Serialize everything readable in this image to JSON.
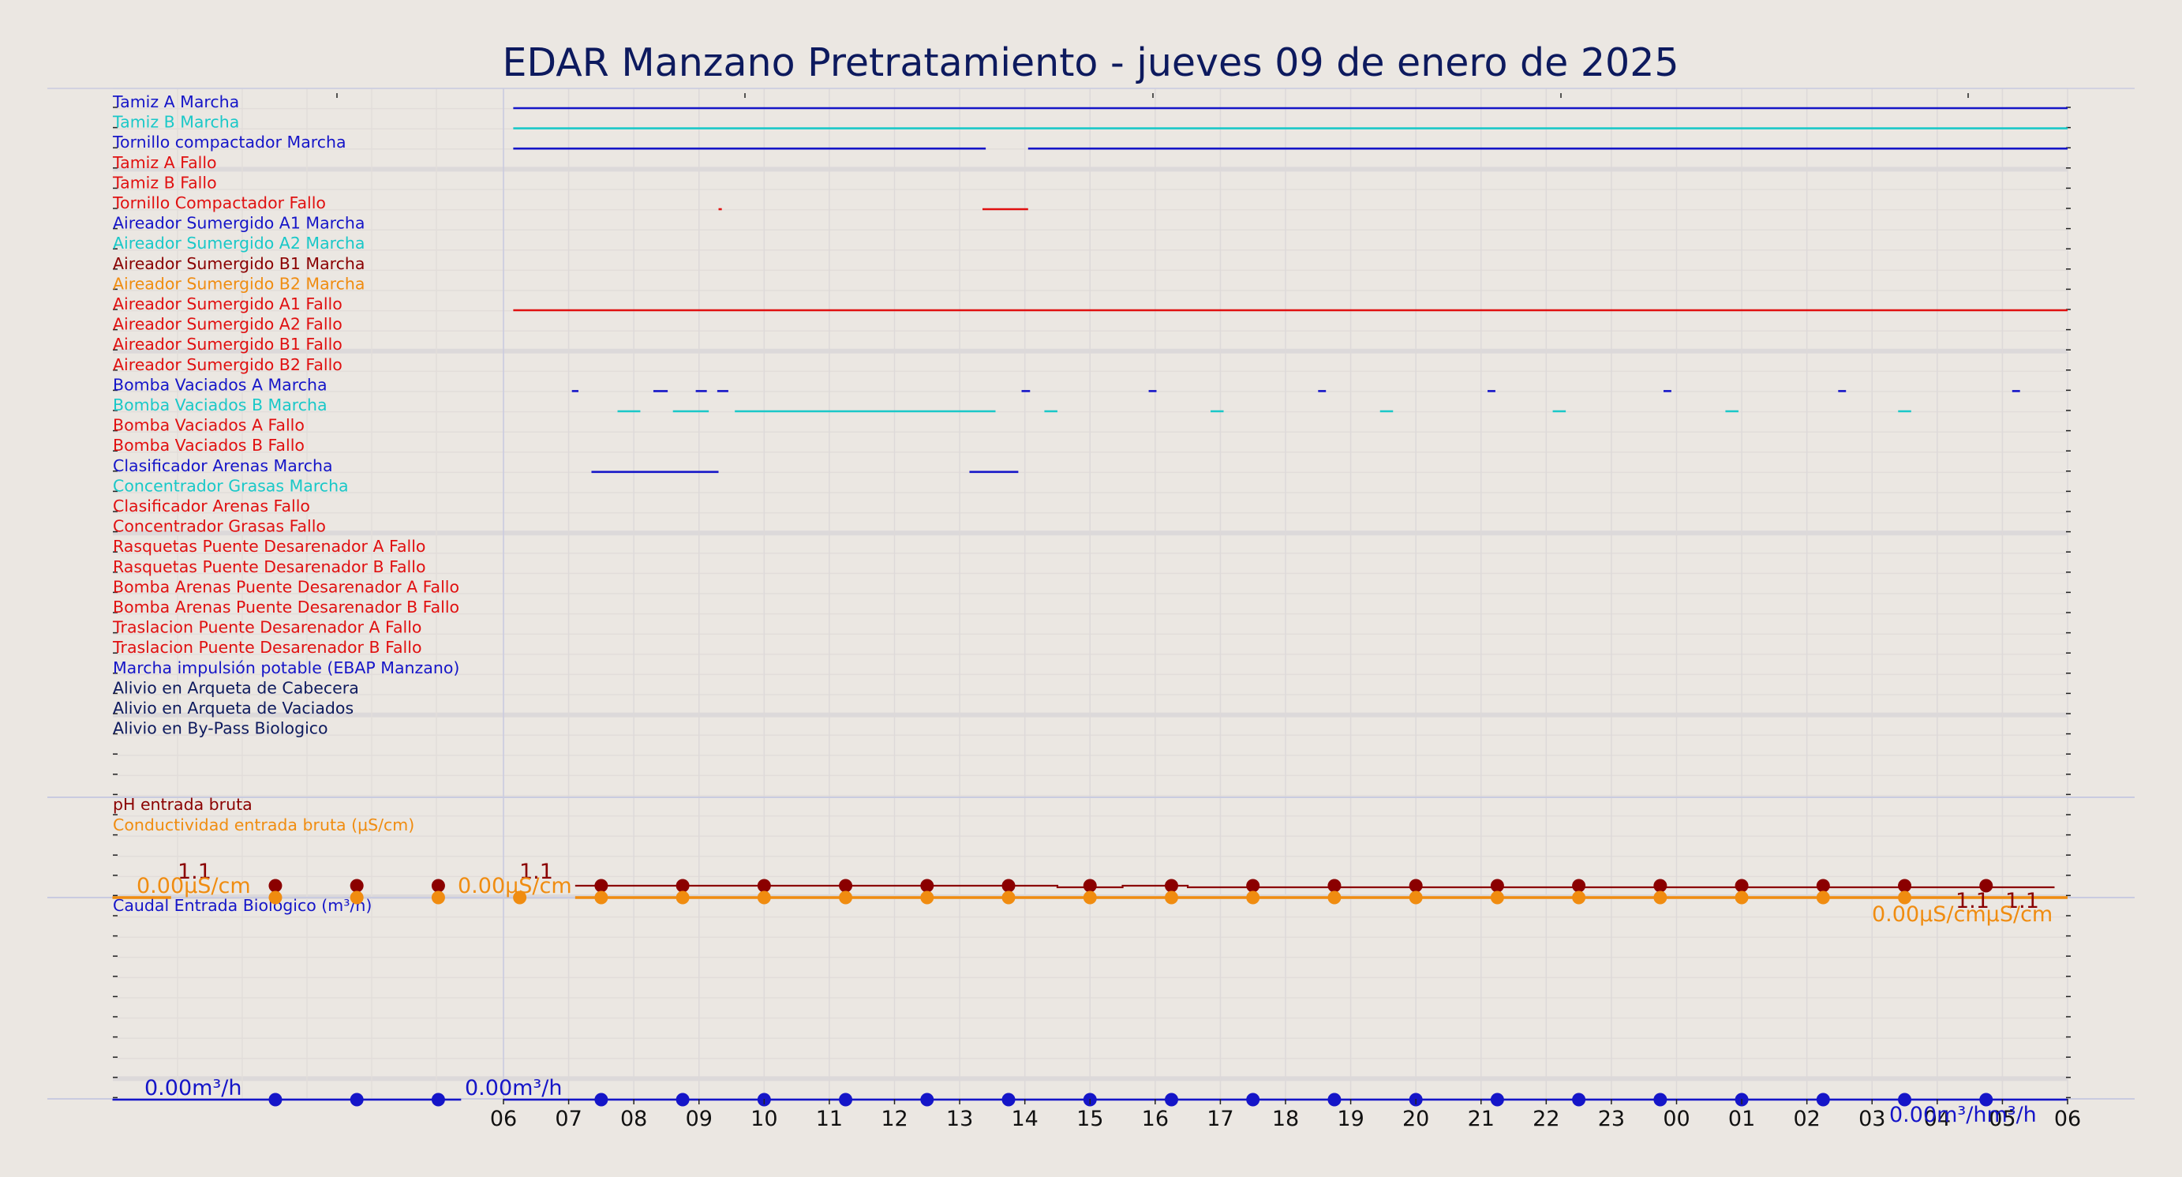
{
  "title": "EDAR Manzano Pretratamiento   -   jueves 09 de enero de 2025",
  "colors": {
    "background": "#ebe7e2",
    "blue": "#1515c8",
    "cyan": "#1ac8c8",
    "red": "#e01010",
    "darkred": "#8b0000",
    "orange": "#f08c10",
    "navy": "#0d1a5e"
  },
  "chart_data": {
    "type": "timeline",
    "x_ticks": [
      "06",
      "07",
      "08",
      "09",
      "10",
      "11",
      "12",
      "13",
      "14",
      "15",
      "16",
      "17",
      "18",
      "19",
      "20",
      "21",
      "22",
      "23",
      "00",
      "01",
      "02",
      "03",
      "04",
      "05",
      "06"
    ],
    "xlim": [
      0,
      24
    ],
    "signals": [
      {
        "name": "Tamiz A Marcha",
        "color": "#1515c8",
        "segments": [
          [
            0.15,
            24
          ]
        ]
      },
      {
        "name": "Tamiz B Marcha",
        "color": "#1ac8c8",
        "segments": [
          [
            0.15,
            24
          ]
        ]
      },
      {
        "name": "Tornillo compactador Marcha",
        "color": "#1515c8",
        "segments": [
          [
            0.15,
            7.4
          ],
          [
            8.05,
            24
          ]
        ]
      },
      {
        "name": "Tamiz A Fallo",
        "color": "#e01010",
        "segments": []
      },
      {
        "name": "Tamiz B Fallo",
        "color": "#e01010",
        "segments": []
      },
      {
        "name": "Tornillo Compactador Fallo",
        "color": "#e01010",
        "segments": [
          [
            3.3,
            3.35
          ],
          [
            7.35,
            8.05
          ]
        ]
      },
      {
        "name": "Aireador Sumergido A1 Marcha",
        "color": "#1515c8",
        "segments": []
      },
      {
        "name": "Aireador Sumergido A2 Marcha",
        "color": "#1ac8c8",
        "segments": []
      },
      {
        "name": "Aireador Sumergido B1 Marcha",
        "color": "#8b0000",
        "segments": []
      },
      {
        "name": "Aireador Sumergido B2 Marcha",
        "color": "#f08c10",
        "segments": []
      },
      {
        "name": "Aireador Sumergido A1 Fallo",
        "color": "#e01010",
        "segments": [
          [
            0.15,
            24
          ]
        ]
      },
      {
        "name": "Aireador Sumergido A2 Fallo",
        "color": "#e01010",
        "segments": []
      },
      {
        "name": "Aireador Sumergido B1 Fallo",
        "color": "#e01010",
        "segments": []
      },
      {
        "name": "Aireador Sumergido B2 Fallo",
        "color": "#e01010",
        "segments": []
      },
      {
        "name": "Bomba Vaciados A Marcha",
        "color": "#1515c8",
        "segments": [
          [
            1.05,
            1.15
          ],
          [
            2.3,
            2.52
          ],
          [
            2.95,
            3.12
          ],
          [
            3.28,
            3.45
          ],
          [
            7.95,
            8.08
          ],
          [
            9.9,
            10.02
          ],
          [
            12.5,
            12.62
          ],
          [
            15.1,
            15.22
          ],
          [
            17.8,
            17.92
          ],
          [
            20.48,
            20.6
          ],
          [
            23.15,
            23.27
          ]
        ]
      },
      {
        "name": "Bomba Vaciados B Marcha",
        "color": "#1ac8c8",
        "segments": [
          [
            1.75,
            2.1
          ],
          [
            2.6,
            3.15
          ],
          [
            3.55,
            7.55
          ],
          [
            8.3,
            8.5
          ],
          [
            10.85,
            11.05
          ],
          [
            13.45,
            13.65
          ],
          [
            16.1,
            16.3
          ],
          [
            18.75,
            18.95
          ],
          [
            21.4,
            21.6
          ]
        ]
      },
      {
        "name": "Bomba Vaciados A Fallo",
        "color": "#e01010",
        "segments": []
      },
      {
        "name": "Bomba Vaciados B Fallo",
        "color": "#e01010",
        "segments": []
      },
      {
        "name": "Clasificador Arenas Marcha",
        "color": "#1515c8",
        "segments": [
          [
            1.35,
            3.3
          ],
          [
            7.15,
            7.9
          ]
        ]
      },
      {
        "name": "Concentrador Grasas Marcha",
        "color": "#1ac8c8",
        "segments": []
      },
      {
        "name": "Clasificador Arenas Fallo",
        "color": "#e01010",
        "segments": []
      },
      {
        "name": "Concentrador Grasas Fallo",
        "color": "#e01010",
        "segments": []
      },
      {
        "name": "Rasquetas Puente Desarenador A Fallo",
        "color": "#e01010",
        "segments": []
      },
      {
        "name": "Rasquetas Puente Desarenador B Fallo",
        "color": "#e01010",
        "segments": []
      },
      {
        "name": "Bomba Arenas Puente Desarenador A Fallo",
        "color": "#e01010",
        "segments": []
      },
      {
        "name": "Bomba Arenas Puente Desarenador B Fallo",
        "color": "#e01010",
        "segments": []
      },
      {
        "name": "Traslacion Puente Desarenador A Fallo",
        "color": "#e01010",
        "segments": []
      },
      {
        "name": "Traslacion Puente Desarenador B Fallo",
        "color": "#e01010",
        "segments": []
      },
      {
        "name": "Marcha impulsión potable (EBAP Manzano)",
        "color": "#1515c8",
        "segments": []
      },
      {
        "name": "Alivio en Arqueta de Cabecera",
        "color": "#0d1a5e",
        "segments": []
      },
      {
        "name": "Alivio en Arqueta de Vaciados",
        "color": "#0d1a5e",
        "segments": []
      },
      {
        "name": "Alivio en By-Pass Biologico",
        "color": "#0d1a5e",
        "segments": []
      }
    ],
    "analog": [
      {
        "name": "pH entrada bruta",
        "color": "#8b0000",
        "value": 1.1,
        "value_label": "1.1",
        "marker_times": [
          -3.5,
          -2.25,
          -1.0,
          1.5,
          2.75,
          4.0,
          5.25,
          6.5,
          7.75,
          9.0,
          10.25,
          11.5,
          12.75,
          14.0,
          15.25,
          16.5,
          17.75,
          19.0,
          20.25,
          21.5,
          22.75
        ]
      },
      {
        "name": "Conductividad entrada bruta (μS/cm)",
        "color": "#f08c10",
        "value": 0.0,
        "value_label": "0.00μS/cm",
        "marker_times": [
          -3.5,
          -2.25,
          -1.0,
          0.25,
          1.5,
          2.75,
          4.0,
          5.25,
          6.5,
          7.75,
          9.0,
          10.25,
          11.5,
          12.75,
          14.0,
          15.25,
          16.5,
          17.75,
          19.0,
          20.25,
          21.5
        ]
      },
      {
        "name": "Caudal Entrada Biologico (m³/h)",
        "color": "#1515c8",
        "value": 0.0,
        "value_label": "0.00m³/h",
        "marker_times": [
          -3.5,
          -2.25,
          -1.0,
          1.5,
          2.75,
          4.0,
          5.25,
          6.5,
          7.75,
          9.0,
          10.25,
          11.5,
          12.75,
          14.0,
          15.25,
          16.5,
          17.75,
          19.0,
          20.25,
          21.5,
          22.75
        ]
      }
    ],
    "value_labels": {
      "ph_left": "1.1",
      "ph_mid": "1.1",
      "ph_right_a": "1.1",
      "ph_right_b": "1.1",
      "cond_left": "0.00μS/cm",
      "cond_mid": "0.00μS/cm",
      "cond_right": "0.00μS/cmμS/cm",
      "flow_left": "0.00m³/h",
      "flow_mid": "0.00m³/h",
      "flow_right": "0.00m³/hm³/h"
    }
  }
}
